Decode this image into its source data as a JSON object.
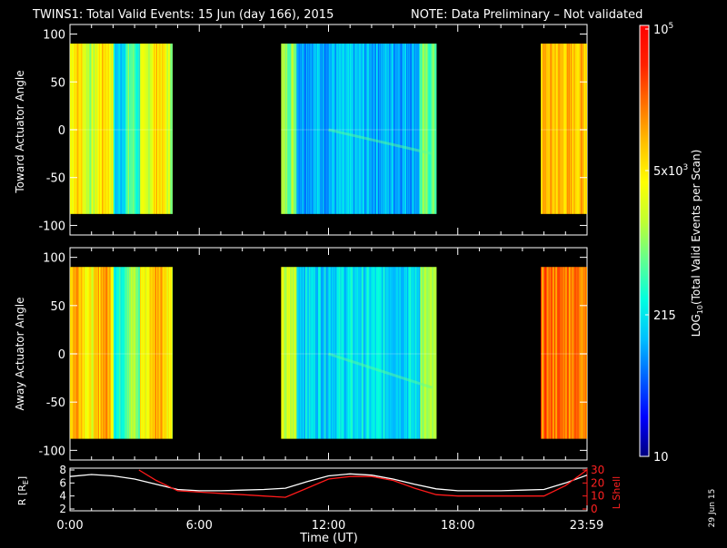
{
  "title": {
    "main": "TWINS1: Total Valid Events: 15 Jun (day 166), 2015",
    "note": "NOTE: Data Preliminary – Not validated",
    "note_color": "#ff2020"
  },
  "side_stamp": "29 Jun 15",
  "chart_data": [
    {
      "type": "heatmap",
      "panel": "toward",
      "ylabel": "Toward Actuator Angle",
      "ylim": [
        -110,
        110
      ],
      "yticks": [
        100,
        50,
        0,
        -50,
        -100
      ],
      "ytick_labels": [
        "100",
        "50",
        "0",
        "-50",
        "-100"
      ],
      "data_yrange": [
        -88,
        90
      ],
      "xlim_hours": [
        0,
        24
      ],
      "data_intervals_hours": [
        [
          0.0,
          4.75
        ],
        [
          9.8,
          17.0
        ],
        [
          21.85,
          23.99
        ]
      ],
      "colormap": "rainbow",
      "description_bands": [
        {
          "start": 0.0,
          "end": 4.75,
          "level": "mid-high"
        },
        {
          "start": 9.8,
          "end": 17.0,
          "level": "low"
        },
        {
          "start": 21.85,
          "end": 23.99,
          "level": "high"
        }
      ]
    },
    {
      "type": "heatmap",
      "panel": "away",
      "ylabel": "Away Actuator Angle",
      "ylim": [
        -110,
        110
      ],
      "yticks": [
        100,
        50,
        0,
        -50,
        -100
      ],
      "ytick_labels": [
        "100",
        "50",
        "0",
        "-50",
        "-100"
      ],
      "data_yrange": [
        -88,
        90
      ],
      "xlim_hours": [
        0,
        24
      ],
      "data_intervals_hours": [
        [
          0.0,
          4.75
        ],
        [
          9.8,
          17.0
        ],
        [
          21.85,
          23.99
        ]
      ],
      "colormap": "rainbow"
    },
    {
      "type": "line",
      "panel": "orbit",
      "ylabel_left": "R [R",
      "ylabel_left_sub": "E",
      "ylabel_left_close": "]",
      "ylabel_right": "L Shell",
      "ylim_left": [
        2,
        8
      ],
      "yticks_left": [
        "8",
        "6",
        "4",
        "2"
      ],
      "ylim_right": [
        0,
        30
      ],
      "yticks_right": [
        "30",
        "20",
        "10",
        "0"
      ],
      "xticks": [
        "0:00",
        "6:00",
        "12:00",
        "18:00",
        "23:59"
      ],
      "xtick_hours": [
        0,
        6,
        12,
        18,
        23.98
      ],
      "xlabel": "Time (UT)",
      "series": [
        {
          "color": "#ffffff",
          "axis": "left",
          "x": [
            0,
            1,
            2,
            3,
            4,
            5,
            6,
            7,
            8,
            9,
            10,
            11,
            12,
            13,
            14,
            15,
            16,
            17,
            18,
            19,
            20,
            21,
            22,
            23,
            24
          ],
          "y": [
            7.0,
            7.3,
            7.1,
            6.6,
            5.8,
            5.0,
            4.8,
            4.8,
            4.9,
            5.0,
            5.2,
            6.2,
            7.1,
            7.4,
            7.2,
            6.6,
            5.8,
            5.1,
            4.8,
            4.8,
            4.8,
            4.9,
            5.0,
            6.0,
            7.2
          ]
        },
        {
          "color": "#ff1a1a",
          "axis": "right",
          "x": [
            3.2,
            4.0,
            5.0,
            6.0,
            7.0,
            8.0,
            9.0,
            10.0,
            11.0,
            12.0,
            13.0,
            14.0,
            15.0,
            16.0,
            17.0,
            18.0,
            19.0,
            20.0,
            21.0,
            22.0,
            23.0,
            23.99
          ],
          "y": [
            30,
            22,
            14,
            13,
            12,
            11,
            10,
            9,
            16,
            23,
            25,
            25,
            22,
            16,
            11,
            10,
            10,
            10,
            10,
            10,
            18,
            30
          ]
        }
      ]
    }
  ],
  "colorbar": {
    "tick_labels": [
      "10",
      "215",
      "5x10",
      "10"
    ],
    "tick_sup": [
      "",
      "",
      "3",
      "5"
    ],
    "label_pre": "LOG",
    "label_sub": "10",
    "label_post": "(Total Valid Events per Scan)",
    "colors": [
      "#00007f",
      "#0000ff",
      "#0060ff",
      "#00c0ff",
      "#00ffe0",
      "#60ff90",
      "#c0ff30",
      "#ffff00",
      "#ffc000",
      "#ff7000",
      "#ff2000",
      "#ff0000"
    ]
  }
}
